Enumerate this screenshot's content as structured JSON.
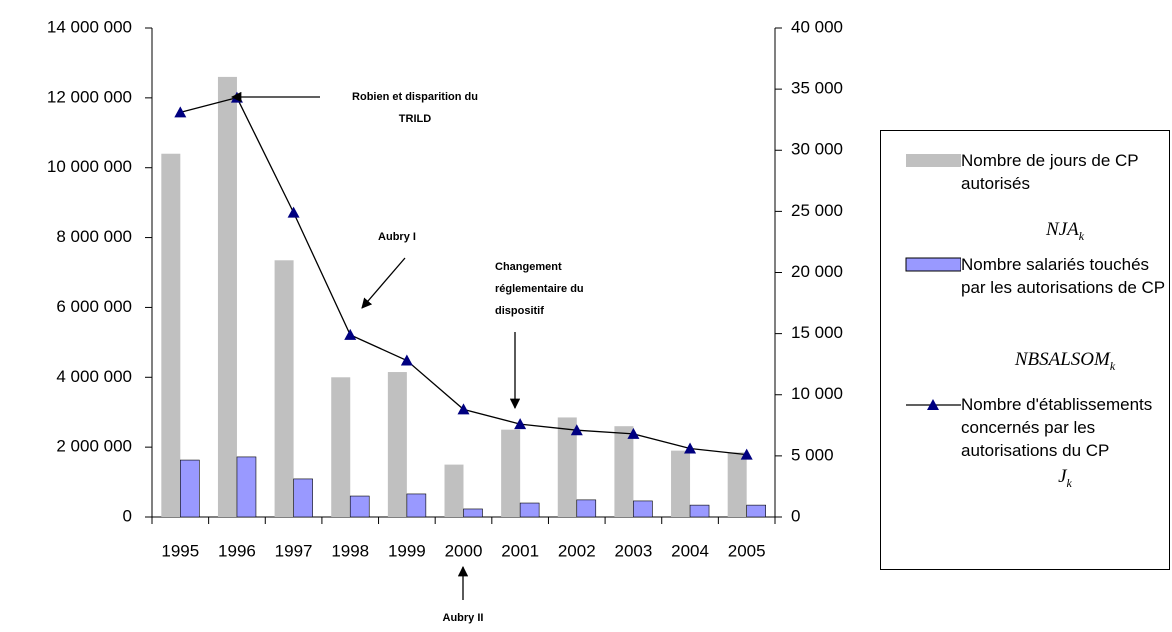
{
  "chart_data": {
    "type": "bar",
    "categories": [
      "1995",
      "1996",
      "1997",
      "1998",
      "1999",
      "2000",
      "2001",
      "2002",
      "2003",
      "2004",
      "2005"
    ],
    "ylim": [
      0,
      14000000
    ],
    "yticks": [
      0,
      {
        "value": 2000000,
        "label": "2 000 000"
      },
      {
        "value": 4000000,
        "label": "4 000 000"
      },
      {
        "value": 6000000,
        "label": "6 000 000"
      },
      {
        "value": 8000000,
        "label": "8 000 000"
      },
      {
        "value": 10000000,
        "label": "10 000 000"
      },
      {
        "value": 12000000,
        "label": "12 000 000"
      },
      {
        "value": 14000000,
        "label": "14 000 000"
      }
    ],
    "y2lim": [
      0,
      40000
    ],
    "y2ticks": [
      0,
      {
        "value": 5000,
        "label": "5 000"
      },
      {
        "value": 10000,
        "label": "10 000"
      },
      {
        "value": 15000,
        "label": "15 000"
      },
      {
        "value": 20000,
        "label": "20 000"
      },
      {
        "value": 25000,
        "label": "25 000"
      },
      {
        "value": 30000,
        "label": "30 000"
      },
      {
        "value": 35000,
        "label": "35 000"
      },
      {
        "value": 40000,
        "label": "40 000"
      }
    ],
    "series": [
      {
        "name": "Nombre de jours de CP autorisés",
        "symbol": "NJA",
        "symbol_subscript": "k",
        "type": "bar",
        "color": "#c0c0c0",
        "values": [
          10400000,
          12600000,
          7350000,
          4000000,
          4150000,
          1500000,
          2500000,
          2850000,
          2600000,
          1900000,
          1850000
        ]
      },
      {
        "name": "Nombre salariés touchés par les autorisations de CP",
        "symbol": "NBSALSOM",
        "symbol_subscript": "k",
        "type": "bar",
        "color": "#9999ff",
        "values": [
          1630000,
          1720000,
          1090000,
          600000,
          660000,
          230000,
          400000,
          490000,
          460000,
          340000,
          340000
        ]
      },
      {
        "name": "Nombre d'établissements concernés par les autorisations du CP",
        "symbol": "J",
        "symbol_subscript": "k",
        "type": "line",
        "axis": "y2",
        "color": "#000080",
        "values": [
          33100,
          34300,
          24900,
          14900,
          12800,
          8800,
          7600,
          7100,
          6800,
          5600,
          5100
        ]
      }
    ],
    "annotations": [
      {
        "lines": [
          "Robien et disparition du",
          "TRILD"
        ]
      },
      {
        "lines": [
          "Aubry I"
        ]
      },
      {
        "lines": [
          "Changement",
          "réglementaire du",
          "dispositif"
        ]
      },
      {
        "lines": [
          "Aubry II"
        ]
      }
    ]
  }
}
